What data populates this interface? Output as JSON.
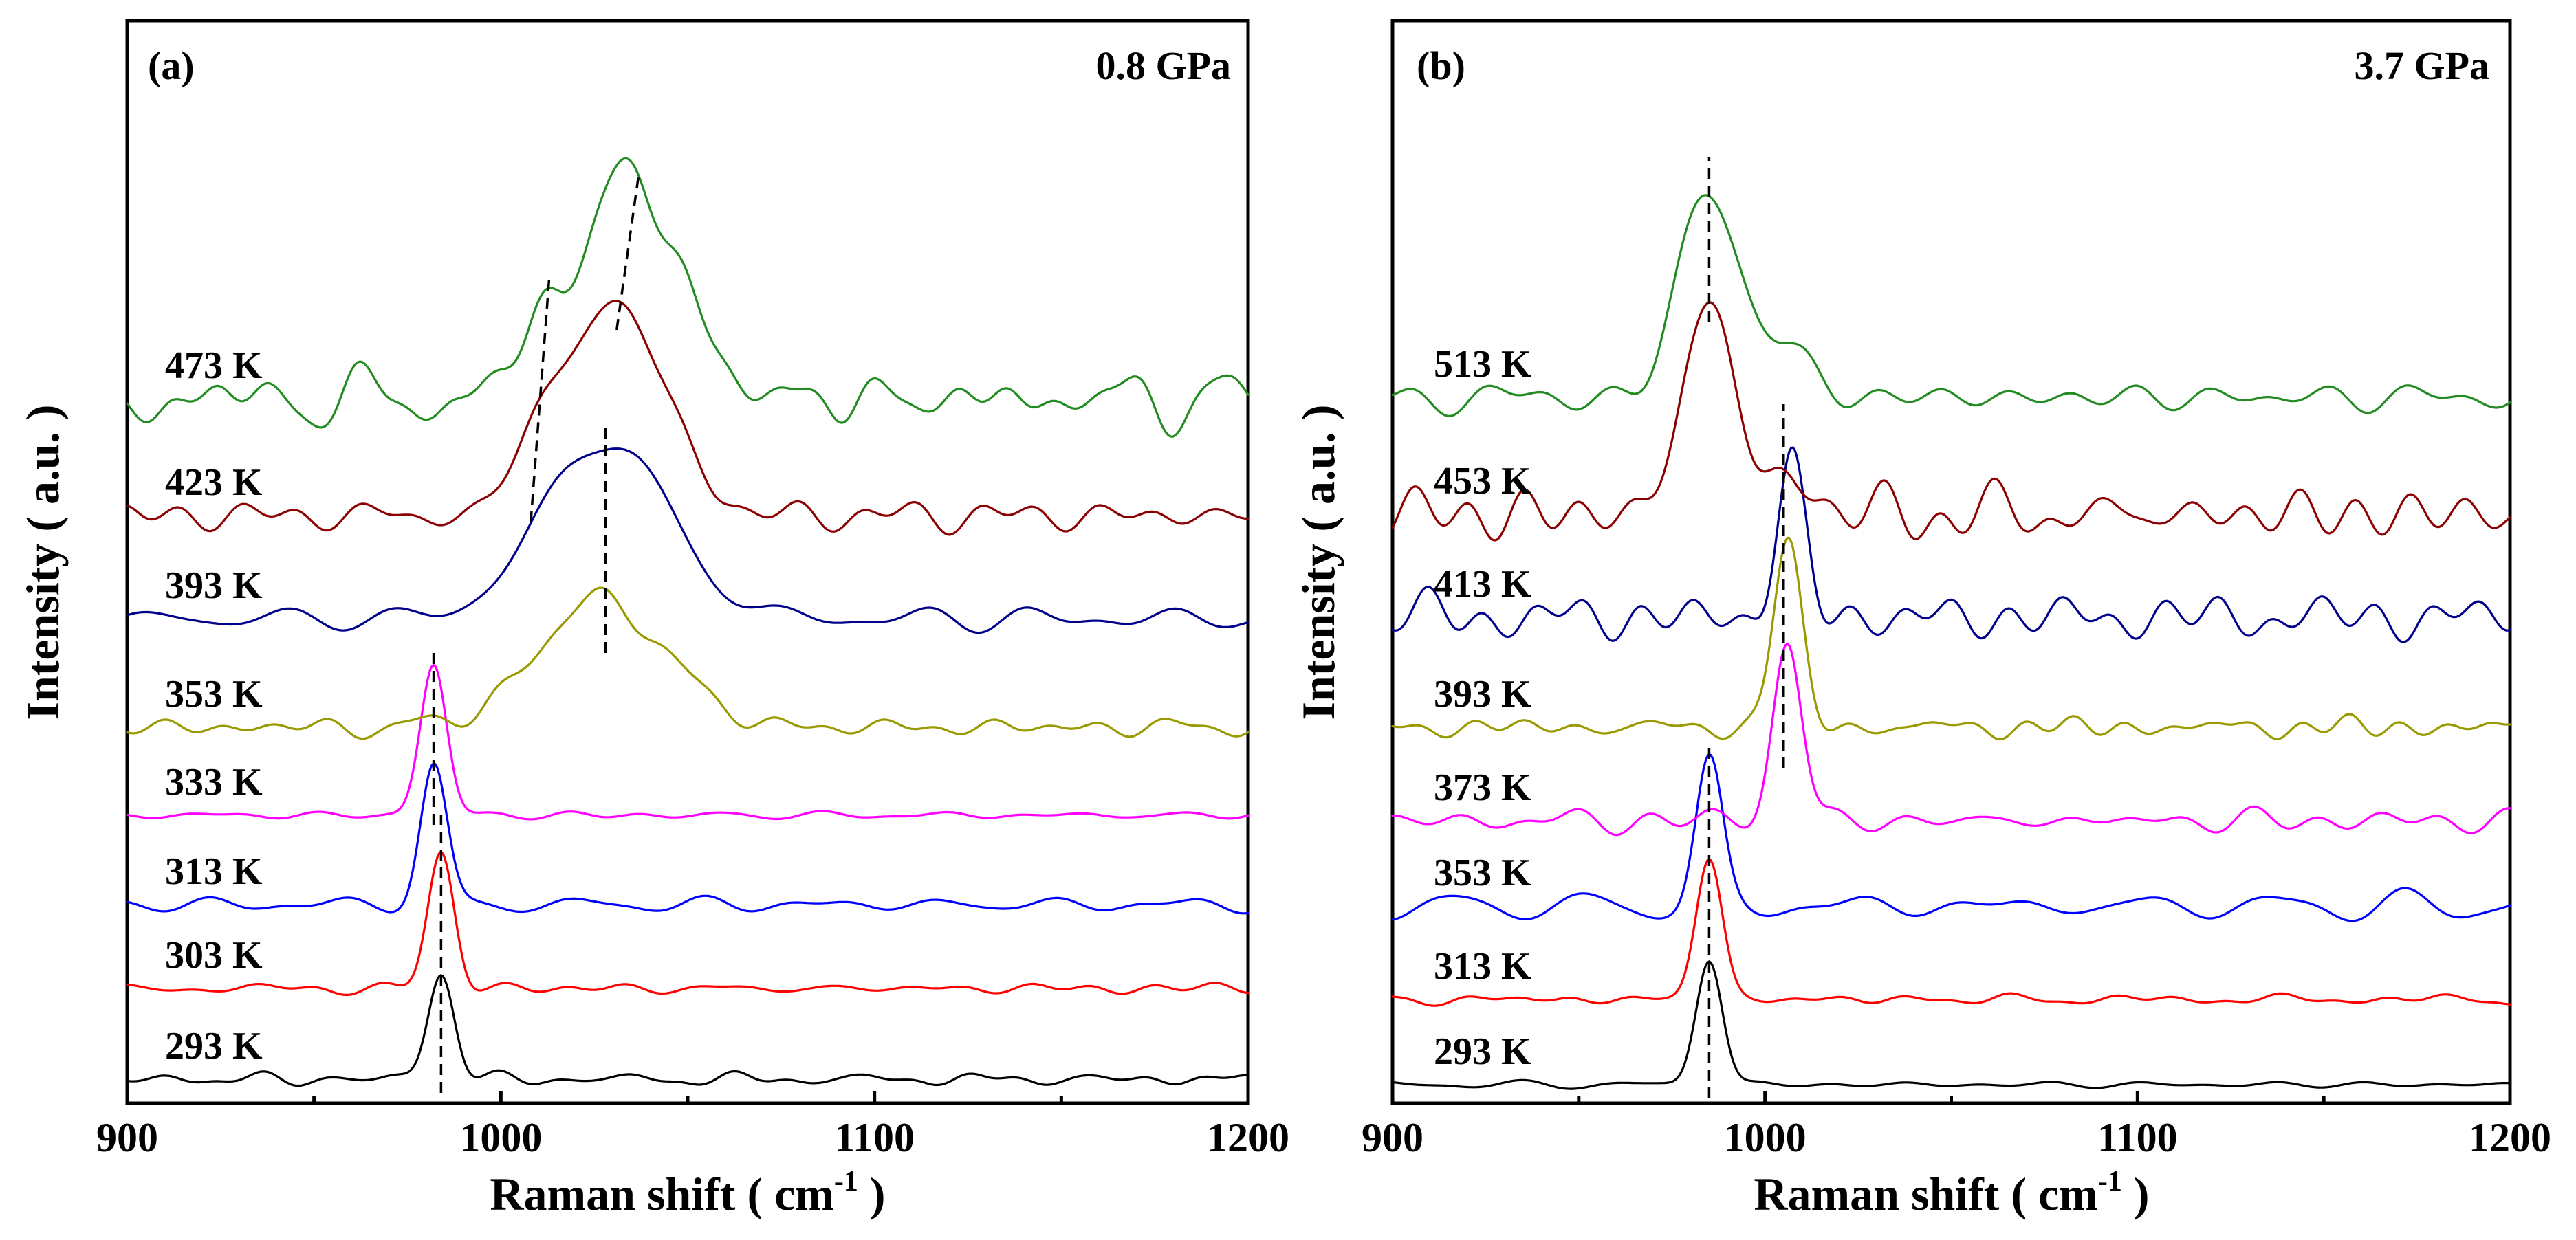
{
  "chart_data": [
    {
      "type": "line",
      "panel_label": "(a)",
      "pressure": "0.8 GPa",
      "xlabel": "Raman shift ( cm",
      "xlabel_sup": "-1",
      "xlabel_end": " )",
      "ylabel": "Intensity ( a.u. )",
      "xlim": [
        900,
        1200
      ],
      "xticks": [
        900,
        1000,
        1100,
        1200
      ],
      "yticks_visible": false,
      "series": [
        {
          "name": "293 K",
          "color": "#000000",
          "baseline": 0.0,
          "noise": 0.012,
          "peaks": [
            {
              "center": 984,
              "height": 0.78,
              "width": 3.5
            }
          ],
          "seed": 1
        },
        {
          "name": "303 K",
          "color": "#ff0000",
          "baseline": 0.66,
          "noise": 0.012,
          "peaks": [
            {
              "center": 984,
              "height": 0.98,
              "width": 3.5
            }
          ],
          "seed": 2
        },
        {
          "name": "313 K",
          "color": "#0000ff",
          "baseline": 1.27,
          "noise": 0.012,
          "peaks": [
            {
              "center": 982,
              "height": 1.0,
              "width": 3.5
            }
          ],
          "seed": 3
        },
        {
          "name": "333 K",
          "color": "#ff00ff",
          "baseline": 1.92,
          "noise": 0.008,
          "peaks": [
            {
              "center": 982,
              "height": 1.1,
              "width": 3.5
            }
          ],
          "seed": 4
        },
        {
          "name": "353 K",
          "color": "#999900",
          "baseline": 2.56,
          "noise": 0.02,
          "peaks": [
            {
              "center": 1027,
              "height": 0.93,
              "width": 17
            }
          ],
          "seed": 5
        },
        {
          "name": "393 K",
          "color": "#00008b",
          "baseline": 3.35,
          "noise": 0.02,
          "peaks": [
            {
              "center": 1028,
              "height": 1.3,
              "width": 17
            }
          ],
          "seed": 6
        },
        {
          "name": "423 K",
          "color": "#8b0000",
          "baseline": 4.1,
          "noise": 0.03,
          "peaks": [
            {
              "center": 1031,
              "height": 1.55,
              "width": 13
            },
            {
              "center": 1010,
              "height": 0.45,
              "width": 6
            }
          ],
          "seed": 7
        },
        {
          "name": "473 K",
          "color": "#228b22",
          "baseline": 4.95,
          "noise": 0.06,
          "peaks": [
            {
              "center": 1035,
              "height": 1.62,
              "width": 13
            },
            {
              "center": 1012,
              "height": 0.45,
              "width": 6
            }
          ],
          "seed": 8
        }
      ],
      "guides": [
        {
          "x1": 984,
          "y1": -0.1,
          "x2": 984,
          "y2": 1.92
        },
        {
          "x1": 982,
          "y1": 1.85,
          "x2": 982,
          "y2": 3.15
        },
        {
          "x1": 1028,
          "y1": 3.1,
          "x2": 1028,
          "y2": 4.75
        },
        {
          "x1": 1008,
          "y1": 4.05,
          "x2": 1013,
          "y2": 5.85
        },
        {
          "x1": 1031,
          "y1": 5.45,
          "x2": 1037,
          "y2": 6.6
        }
      ]
    },
    {
      "type": "line",
      "panel_label": "(b)",
      "pressure": "3.7 GPa",
      "xlabel": "Raman shift ( cm",
      "xlabel_sup": "-1",
      "xlabel_end": " )",
      "ylabel": "Intensity ( a.u. )",
      "xlim": [
        900,
        1200
      ],
      "xticks": [
        900,
        1000,
        1100,
        1200
      ],
      "yticks_visible": false,
      "series": [
        {
          "name": "293 K",
          "color": "#000000",
          "baseline": 0.0,
          "noise": 0.008,
          "peaks": [
            {
              "center": 985,
              "height": 0.92,
              "width": 3.5
            }
          ],
          "seed": 11
        },
        {
          "name": "313 K",
          "color": "#ff0000",
          "baseline": 0.62,
          "noise": 0.01,
          "peaks": [
            {
              "center": 985,
              "height": 1.04,
              "width": 3.5
            }
          ],
          "seed": 12
        },
        {
          "name": "353 K",
          "color": "#0000ff",
          "baseline": 1.3,
          "noise": 0.025,
          "peaks": [
            {
              "center": 985,
              "height": 1.0,
              "width": 3.5
            }
          ],
          "seed": 13
        },
        {
          "name": "373 K",
          "color": "#ff00ff",
          "baseline": 1.92,
          "noise": 0.02,
          "peaks": [
            {
              "center": 1006,
              "height": 1.3,
              "width": 3.8
            }
          ],
          "seed": 14
        },
        {
          "name": "393 K",
          "color": "#999900",
          "baseline": 2.6,
          "noise": 0.02,
          "peaks": [
            {
              "center": 1006,
              "height": 1.35,
              "width": 3.8
            }
          ],
          "seed": 15
        },
        {
          "name": "413 K",
          "color": "#00008b",
          "baseline": 3.4,
          "noise": 0.06,
          "peaks": [
            {
              "center": 1007,
              "height": 1.1,
              "width": 3.8
            }
          ],
          "seed": 16
        },
        {
          "name": "453 K",
          "color": "#8b0000",
          "baseline": 4.15,
          "noise": 0.05,
          "peaks": [
            {
              "center": 985,
              "height": 1.55,
              "width": 7
            },
            {
              "center": 1008,
              "height": 0.3,
              "width": 5
            }
          ],
          "seed": 17
        },
        {
          "name": "513 K",
          "color": "#228b22",
          "baseline": 5.0,
          "noise": 0.03,
          "peaks": [
            {
              "center": 985,
              "height": 1.5,
              "width": 8
            },
            {
              "center": 1005,
              "height": 0.3,
              "width": 8
            }
          ],
          "seed": 18
        }
      ],
      "guides": [
        {
          "x1": 985,
          "y1": -0.1,
          "x2": 985,
          "y2": 2.45
        },
        {
          "x1": 1005,
          "y1": 2.3,
          "x2": 1005,
          "y2": 4.95
        },
        {
          "x1": 985,
          "y1": 5.55,
          "x2": 985,
          "y2": 6.75
        }
      ]
    }
  ]
}
